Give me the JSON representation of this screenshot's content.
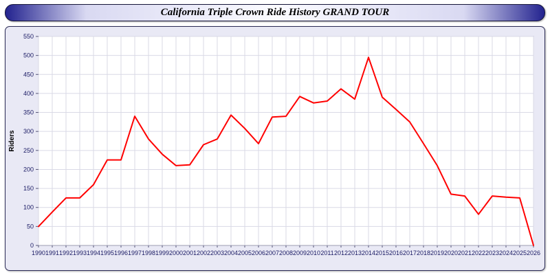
{
  "title_bar": {
    "title": "California Triple Crown Ride History GRAND TOUR"
  },
  "colors": {
    "line": "#ff0000",
    "grid": "#d9d9e6",
    "plot_background": "#ffffff",
    "plot_border": "#9c9cb0",
    "tick_label": "#1a1a64",
    "panel_background": "#e9e9f5"
  },
  "chart_data": {
    "type": "line",
    "title": "California Triple Crown Ride History GRAND TOUR",
    "xlabel": "",
    "ylabel": "Riders",
    "ylim": [
      0,
      550
    ],
    "ytick_step": 50,
    "grid": true,
    "legend": false,
    "categories": [
      1990,
      1991,
      1992,
      1993,
      1994,
      1995,
      1996,
      1997,
      1998,
      1999,
      2000,
      2001,
      2002,
      2003,
      2004,
      2005,
      2006,
      2007,
      2008,
      2009,
      2010,
      2011,
      2012,
      2013,
      2014,
      2015,
      2016,
      2017,
      2018,
      2019,
      2020,
      2021,
      2022,
      2023,
      2024,
      2025,
      2026
    ],
    "values": [
      50,
      88,
      125,
      125,
      160,
      225,
      225,
      340,
      280,
      240,
      210,
      212,
      265,
      280,
      343,
      308,
      268,
      338,
      340,
      392,
      375,
      380,
      412,
      385,
      495,
      390,
      358,
      325,
      268,
      210,
      135,
      130,
      82,
      130,
      127,
      125,
      0
    ]
  }
}
